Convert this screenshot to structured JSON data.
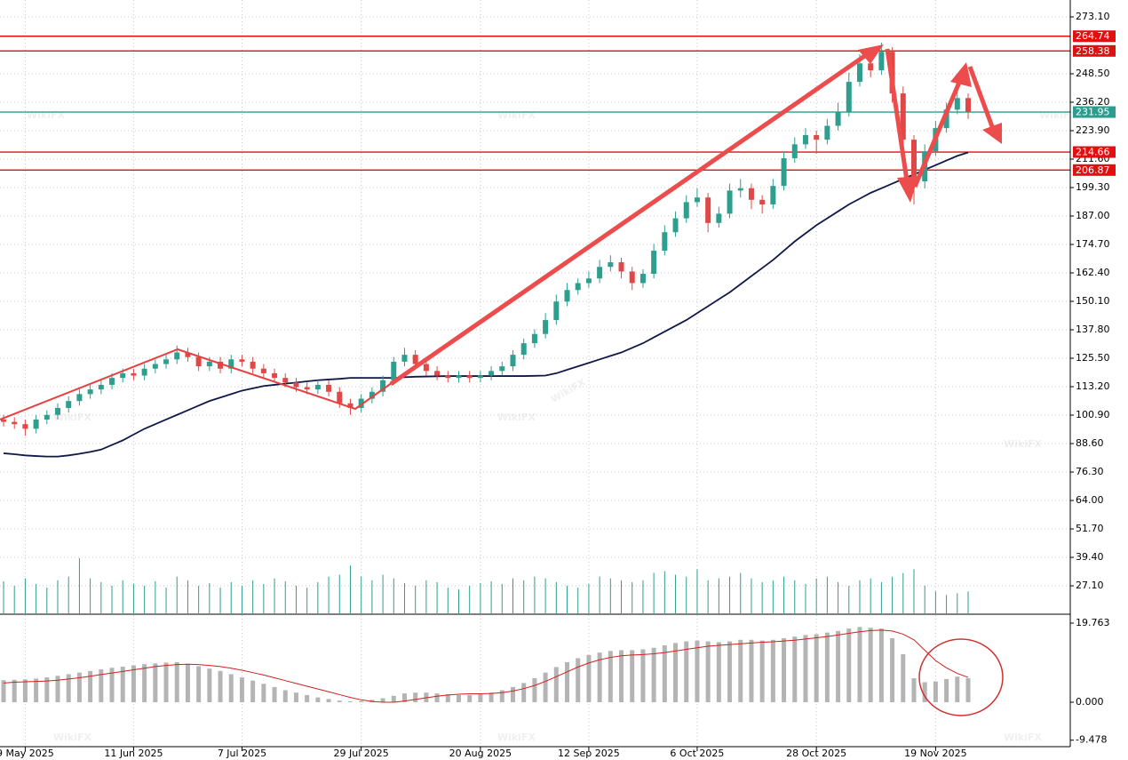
{
  "chart_data": {
    "type": "candlestick",
    "watermark": "WikiFX",
    "ylim": [
      15.2,
      280.4
    ],
    "yticks": [
      {
        "value": 273.1,
        "label": "273.10"
      },
      {
        "value": 248.5,
        "label": "248.50"
      },
      {
        "value": 236.2,
        "label": "236.20"
      },
      {
        "value": 223.9,
        "label": "223.90"
      },
      {
        "value": 211.6,
        "label": "211.60"
      },
      {
        "value": 199.3,
        "label": "199.30"
      },
      {
        "value": 187,
        "label": "187.00"
      },
      {
        "value": 174.7,
        "label": "174.70"
      },
      {
        "value": 162.4,
        "label": "162.40"
      },
      {
        "value": 150.1,
        "label": "150.10"
      },
      {
        "value": 137.8,
        "label": "137.80"
      },
      {
        "value": 125.5,
        "label": "125.50"
      },
      {
        "value": 113.2,
        "label": "113.20"
      },
      {
        "value": 100.9,
        "label": "100.90"
      },
      {
        "value": 88.6,
        "label": "88.60"
      },
      {
        "value": 76.3,
        "label": "76.30"
      },
      {
        "value": 64,
        "label": "64.00"
      },
      {
        "value": 51.7,
        "label": "51.70"
      },
      {
        "value": 39.4,
        "label": "39.40"
      },
      {
        "value": 27.1,
        "label": "27.10"
      }
    ],
    "grid": true,
    "categories": [
      null,
      null,
      "9 May 2025",
      null,
      null,
      null,
      null,
      null,
      null,
      null,
      null,
      null,
      "11 Jun 2025",
      null,
      null,
      null,
      null,
      null,
      null,
      null,
      null,
      null,
      "7 Jul 2025",
      null,
      null,
      null,
      null,
      null,
      null,
      null,
      null,
      null,
      null,
      "29 Jul 2025",
      null,
      null,
      null,
      null,
      null,
      null,
      null,
      null,
      null,
      null,
      "20 Aug 2025",
      null,
      null,
      null,
      null,
      null,
      null,
      null,
      null,
      null,
      "12 Sep 2025",
      null,
      null,
      null,
      null,
      null,
      null,
      null,
      null,
      null,
      "6 Oct 2025",
      null,
      null,
      null,
      null,
      null,
      null,
      null,
      null,
      null,
      null,
      "28 Oct 2025",
      null,
      null,
      null,
      null,
      null,
      null,
      null,
      null,
      null,
      null,
      "19 Nov 2025",
      null,
      null,
      null
    ],
    "open": [
      99,
      98,
      97,
      95,
      99,
      101,
      104,
      107,
      110,
      112,
      114,
      117,
      119,
      118,
      121,
      123,
      125,
      128,
      126,
      122,
      124,
      121,
      125,
      124,
      121,
      119,
      117,
      115,
      113,
      112,
      114,
      111,
      106,
      104,
      108,
      111,
      116,
      124,
      127,
      123,
      120,
      118,
      117,
      118,
      117,
      118,
      120,
      122,
      127,
      132,
      136,
      142,
      150,
      155,
      158,
      160,
      165,
      167,
      163,
      158,
      162,
      172,
      180,
      186,
      193,
      195,
      184,
      188,
      198,
      199,
      194,
      192,
      200,
      212,
      218,
      222,
      220,
      226,
      232,
      245,
      253,
      250,
      258,
      240,
      220,
      202,
      215,
      225,
      233,
      238
    ],
    "high": [
      101,
      100,
      99,
      101,
      103,
      106,
      109,
      112,
      114,
      116,
      119,
      121,
      121,
      123,
      125,
      127,
      131,
      130,
      128,
      126,
      126,
      127,
      127,
      126,
      123,
      121,
      119,
      117,
      115,
      116,
      116,
      113,
      108,
      110,
      113,
      118,
      126,
      130,
      129,
      125,
      122,
      120,
      120,
      120,
      120,
      122,
      124,
      129,
      134,
      138,
      145,
      153,
      158,
      160,
      163,
      168,
      170,
      169,
      165,
      164,
      175,
      183,
      189,
      196,
      199,
      197,
      191,
      201,
      203,
      201,
      196,
      203,
      215,
      221,
      225,
      224,
      229,
      236,
      249,
      257,
      256,
      262,
      260,
      243,
      222,
      218,
      228,
      236,
      242,
      240
    ],
    "low": [
      96,
      95,
      92,
      93,
      97,
      99,
      102,
      105,
      108,
      110,
      112,
      115,
      116,
      116,
      119,
      121,
      123,
      124,
      120,
      120,
      119,
      119,
      122,
      119,
      117,
      115,
      113,
      111,
      110,
      110,
      109,
      104,
      101,
      102,
      106,
      109,
      114,
      122,
      121,
      118,
      116,
      115,
      115,
      115,
      115,
      116,
      118,
      120,
      125,
      130,
      134,
      140,
      148,
      153,
      156,
      158,
      163,
      160,
      155,
      156,
      160,
      170,
      178,
      184,
      191,
      180,
      182,
      186,
      195,
      190,
      188,
      190,
      198,
      210,
      216,
      214,
      218,
      224,
      230,
      243,
      247,
      248,
      236,
      216,
      192,
      199,
      213,
      223,
      231,
      229
    ],
    "close": [
      98,
      97,
      95,
      99,
      101,
      104,
      107,
      110,
      112,
      114,
      117,
      119,
      118,
      121,
      123,
      125,
      128,
      126,
      122,
      124,
      121,
      125,
      124,
      121,
      119,
      117,
      115,
      113,
      112,
      114,
      111,
      106,
      104,
      108,
      111,
      116,
      124,
      127,
      123,
      120,
      118,
      117,
      118,
      117,
      118,
      120,
      122,
      127,
      132,
      136,
      142,
      150,
      155,
      158,
      160,
      165,
      167,
      163,
      158,
      162,
      172,
      180,
      186,
      193,
      195,
      184,
      188,
      198,
      199,
      194,
      192,
      200,
      212,
      218,
      222,
      220,
      226,
      232,
      245,
      253,
      250,
      258,
      240,
      220,
      202,
      215,
      225,
      233,
      238,
      232
    ],
    "colors": {
      "up": "#2e9e8e",
      "down": "#e04848"
    },
    "ma": {
      "color": "#101848",
      "values": [
        84.4,
        84,
        83.5,
        83.2,
        83,
        83,
        83.5,
        84.2,
        85,
        86,
        88,
        90,
        92.5,
        95,
        97,
        99,
        101,
        103,
        105,
        107,
        108.5,
        110,
        111.5,
        112.5,
        113.5,
        114,
        114.5,
        115,
        115.5,
        116,
        116.3,
        116.6,
        117,
        117,
        117,
        117,
        117,
        117.3,
        117.5,
        117.6,
        117.7,
        117.8,
        117.8,
        117.8,
        117.8,
        117.8,
        117.8,
        117.8,
        117.8,
        117.9,
        118,
        119,
        120.5,
        122,
        123.5,
        125,
        126.5,
        128,
        130,
        132,
        134.5,
        137,
        139.5,
        142,
        145,
        148,
        151,
        154,
        157.5,
        161,
        164.5,
        168,
        172,
        176,
        179.5,
        183,
        186,
        189,
        192,
        194.5,
        197,
        199,
        201,
        203,
        205,
        207,
        209,
        211,
        213,
        214.5
      ]
    },
    "volume": {
      "color": "#2e9e8e",
      "values": [
        35,
        30,
        38,
        32,
        28,
        36,
        40,
        60,
        38,
        34,
        30,
        36,
        32,
        30,
        35,
        28,
        40,
        36,
        30,
        33,
        28,
        34,
        30,
        36,
        32,
        38,
        35,
        30,
        28,
        34,
        40,
        42,
        52,
        40,
        36,
        42,
        38,
        33,
        30,
        36,
        34,
        28,
        26,
        30,
        33,
        35,
        32,
        38,
        36,
        40,
        38,
        34,
        30,
        28,
        32,
        40,
        38,
        36,
        34,
        36,
        44,
        46,
        42,
        40,
        48,
        36,
        38,
        40,
        44,
        38,
        34,
        36,
        40,
        36,
        32,
        38,
        40,
        34,
        30,
        36,
        38,
        34,
        40,
        44,
        48,
        30,
        24,
        20,
        22,
        24
      ]
    },
    "levels": [
      {
        "value": 264.74,
        "color": "#e01010"
      },
      {
        "value": 258.38,
        "color": "#e01010"
      },
      {
        "value": 231.95,
        "color": "#2a9d8f"
      },
      {
        "value": 214.66,
        "color": "#e01010"
      },
      {
        "value": 206.87,
        "color": "#e01010"
      }
    ],
    "macd": {
      "ylim": [
        -11.1,
        21.76
      ],
      "yticks": [
        19.763,
        {
          "value": 0,
          "label": "0.000"
        },
        -9.478
      ],
      "histogram": {
        "color": "#b4b4b4",
        "values": [
          5.5,
          5.6,
          5.7,
          5.9,
          6.2,
          6.6,
          7,
          7.4,
          7.8,
          8.2,
          8.6,
          8.9,
          9.2,
          9.5,
          9.7,
          9.9,
          10,
          9.6,
          9.0,
          8.4,
          7.8,
          7.0,
          6.2,
          5.4,
          4.6,
          3.8,
          3.0,
          2.4,
          1.8,
          1.2,
          0.8,
          0.4,
          0.2,
          0.3,
          0.6,
          1.0,
          1.6,
          2.2,
          2.4,
          2.4,
          2.2,
          2.0,
          1.8,
          1.8,
          2.0,
          2.4,
          3.0,
          3.8,
          4.8,
          6.0,
          7.4,
          8.8,
          10.0,
          11.0,
          11.8,
          12.4,
          12.8,
          13.0,
          13.0,
          13.2,
          13.6,
          14.2,
          14.8,
          15.2,
          15.4,
          15.2,
          15.0,
          15.2,
          15.6,
          15.6,
          15.4,
          15.6,
          16.0,
          16.4,
          16.8,
          17.0,
          17.4,
          17.8,
          18.4,
          18.8,
          18.6,
          18.4,
          16.0,
          12.0,
          6.0,
          5.0,
          5.2,
          5.8,
          6.4,
          6.0
        ]
      },
      "signal": {
        "color": "#d02020",
        "values": [
          4.8,
          5.0,
          5.1,
          5.2,
          5.3,
          5.5,
          5.8,
          6.1,
          6.5,
          6.9,
          7.3,
          7.7,
          8.1,
          8.5,
          8.9,
          9.2,
          9.4,
          9.5,
          9.4,
          9.2,
          8.9,
          8.5,
          8.0,
          7.4,
          6.8,
          6.1,
          5.4,
          4.7,
          4.0,
          3.3,
          2.6,
          1.9,
          1.2,
          0.6,
          0.2,
          0.0,
          0.0,
          0.3,
          0.7,
          1.1,
          1.5,
          1.8,
          2.0,
          2.1,
          2.1,
          2.2,
          2.4,
          2.8,
          3.4,
          4.2,
          5.2,
          6.4,
          7.6,
          8.8,
          9.8,
          10.6,
          11.2,
          11.6,
          11.8,
          11.9,
          12.1,
          12.4,
          12.8,
          13.2,
          13.6,
          14.0,
          14.2,
          14.4,
          14.6,
          14.8,
          15.0,
          15.1,
          15.3,
          15.5,
          15.8,
          16.1,
          16.4,
          16.8,
          17.2,
          17.6,
          17.9,
          18.0,
          17.8,
          17.0,
          15.6,
          13.0,
          10.4,
          8.6,
          7.2,
          6.2
        ]
      }
    }
  }
}
